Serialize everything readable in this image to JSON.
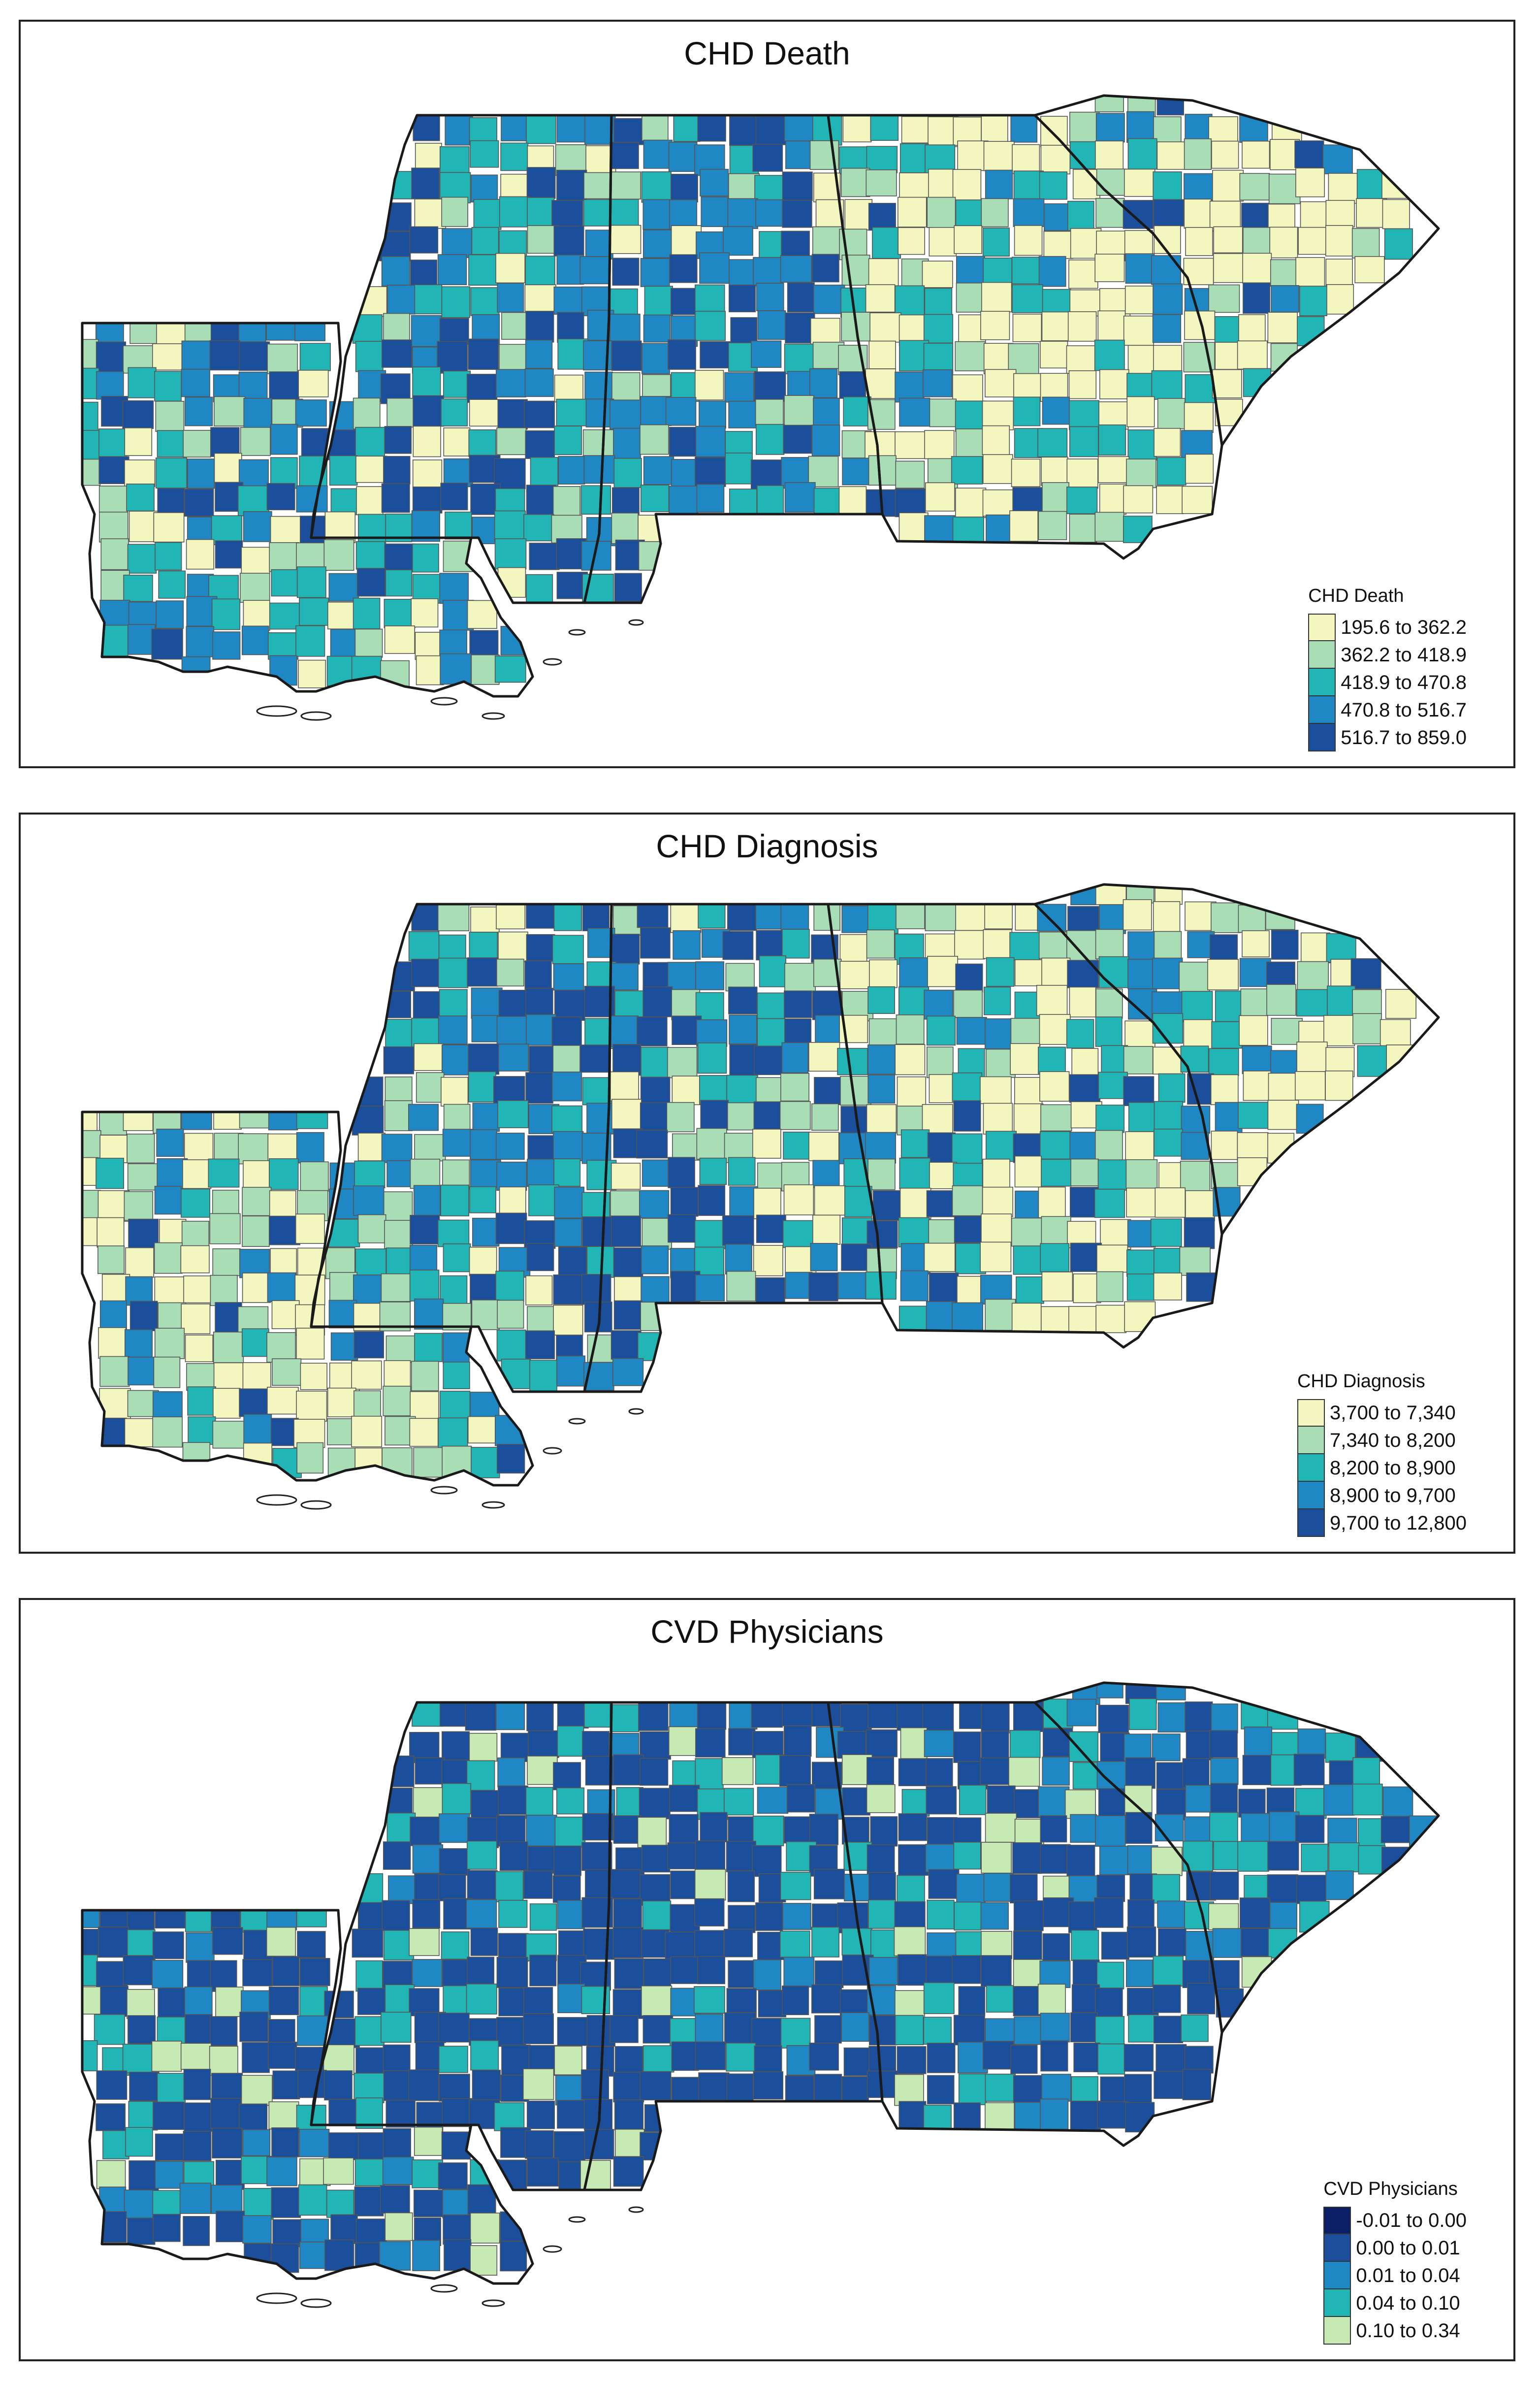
{
  "palette": {
    "class1": "#f3f7bf",
    "class2": "#a8ddb5",
    "class3": "#21b5b5",
    "class4": "#1e87c4",
    "class5": "#1b4f9c",
    "class0": "#0a1f66",
    "border": "#1a1a1a",
    "county": "#555555"
  },
  "panels": [
    {
      "title": "CHD Death",
      "legend_title": "CHD Death",
      "classes": [
        {
          "label": "195.6 to 362.2",
          "color": "#f3f7bf"
        },
        {
          "label": "362.2 to 418.9",
          "color": "#a8ddb5"
        },
        {
          "label": "418.9 to 470.8",
          "color": "#21b5b5"
        },
        {
          "label": "470.8 to 516.7",
          "color": "#1e87c4"
        },
        {
          "label": "516.7 to 859.0",
          "color": "#1b4f9c"
        }
      ],
      "state_mix": {
        "LA": [
          0.15,
          0.15,
          0.25,
          0.25,
          0.2
        ],
        "MS": [
          0.08,
          0.12,
          0.3,
          0.3,
          0.2
        ],
        "AL": [
          0.08,
          0.12,
          0.2,
          0.3,
          0.3
        ],
        "GA": [
          0.4,
          0.25,
          0.2,
          0.1,
          0.05
        ],
        "SC": [
          0.5,
          0.25,
          0.12,
          0.08,
          0.05
        ]
      }
    },
    {
      "title": "CHD Diagnosis",
      "legend_title": "CHD Diagnosis",
      "classes": [
        {
          "label": "3,700 to 7,340",
          "color": "#f3f7bf"
        },
        {
          "label": "7,340 to 8,200",
          "color": "#a8ddb5"
        },
        {
          "label": "8,200 to 8,900",
          "color": "#21b5b5"
        },
        {
          "label": "8,900 to 9,700",
          "color": "#1e87c4"
        },
        {
          "label": "9,700 to 12,800",
          "color": "#1b4f9c"
        }
      ],
      "state_mix": {
        "LA": [
          0.3,
          0.3,
          0.15,
          0.15,
          0.1
        ],
        "MS": [
          0.12,
          0.15,
          0.2,
          0.23,
          0.3
        ],
        "AL": [
          0.12,
          0.13,
          0.2,
          0.2,
          0.35
        ],
        "GA": [
          0.35,
          0.2,
          0.2,
          0.15,
          0.1
        ],
        "SC": [
          0.3,
          0.2,
          0.2,
          0.2,
          0.1
        ]
      }
    },
    {
      "title": "CVD Physicians",
      "legend_title": "CVD Physicians",
      "classes": [
        {
          "label": "-0.01 to 0.00",
          "color": "#0a1f66"
        },
        {
          "label": "0.00 to 0.01",
          "color": "#1b4f9c"
        },
        {
          "label": "0.01 to 0.04",
          "color": "#1e87c4"
        },
        {
          "label": "0.04 to 0.10",
          "color": "#21b5b5"
        },
        {
          "label": "0.10 to 0.34",
          "color": "#c7e9b4"
        }
      ],
      "state_mix": {
        "LA": [
          0.0,
          0.55,
          0.15,
          0.2,
          0.1
        ],
        "MS": [
          0.0,
          0.7,
          0.1,
          0.15,
          0.05
        ],
        "AL": [
          0.0,
          0.6,
          0.15,
          0.15,
          0.1
        ],
        "GA": [
          0.0,
          0.55,
          0.15,
          0.2,
          0.1
        ],
        "SC": [
          0.0,
          0.35,
          0.3,
          0.25,
          0.1
        ]
      }
    }
  ]
}
